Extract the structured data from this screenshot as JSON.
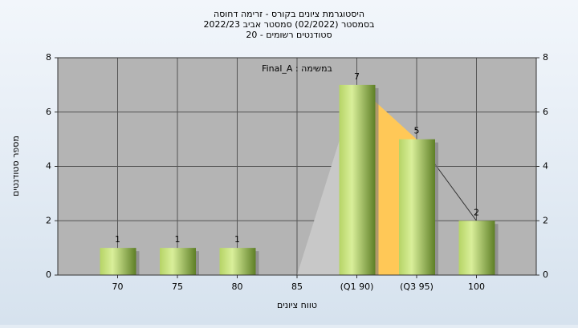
{
  "chart_data": {
    "type": "bar",
    "title": "היסטוגרמת ציונים בקורס - זרימה דחוסה",
    "subtitle": "בסמסטר  (02/2022)  סמסטר אביב 2022/23",
    "subtitle2": "סטודנטים רשומים - 20",
    "annotation": "במשימה : Final_A",
    "y_label": "מספר סטודנטים",
    "x_label": "טווח ציונים",
    "categories": [
      "70",
      "75",
      "80",
      "85",
      "(Q1 90)",
      "(Q3 95)",
      "100"
    ],
    "values": [
      1,
      1,
      1,
      0,
      7,
      5,
      2
    ],
    "ylim": [
      0,
      8
    ],
    "yticks": [
      0,
      2,
      4,
      6,
      8
    ],
    "y2lim": [
      0,
      8
    ],
    "y2ticks": [
      0,
      2,
      4,
      6,
      8
    ],
    "color": "#9fc34f",
    "grid": true
  }
}
